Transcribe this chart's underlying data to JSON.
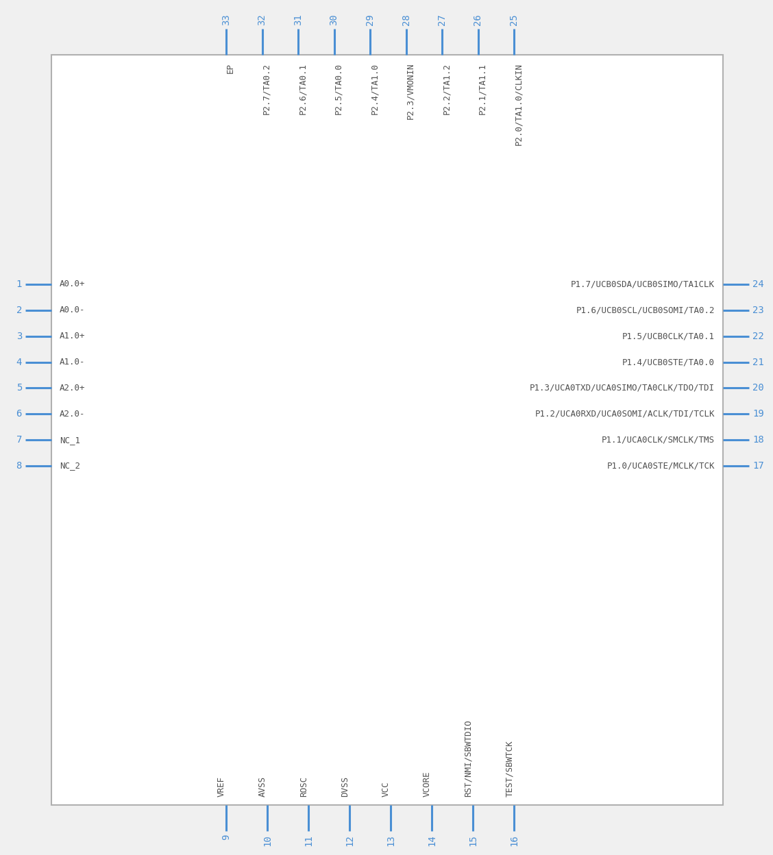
{
  "bg_color": "#f0f0f0",
  "box_color": "#b0b0b0",
  "box_face": "#ffffff",
  "pin_color": "#4a8fd4",
  "text_color": "#505050",
  "pin_num_color": "#4a8fd4",
  "left_pins": [
    {
      "num": 1,
      "name": "A0.0+"
    },
    {
      "num": 2,
      "name": "A0.0-"
    },
    {
      "num": 3,
      "name": "A1.0+"
    },
    {
      "num": 4,
      "name": "A1.0-"
    },
    {
      "num": 5,
      "name": "A2.0+"
    },
    {
      "num": 6,
      "name": "A2.0-"
    },
    {
      "num": 7,
      "name": "NC_1"
    },
    {
      "num": 8,
      "name": "NC_2"
    }
  ],
  "right_pins": [
    {
      "num": 24,
      "name": "P1.7/UCB0SDA/UCB0SIMO/TA1CLK"
    },
    {
      "num": 23,
      "name": "P1.6/UCB0SCL/UCB0SOMI/TA0.2"
    },
    {
      "num": 22,
      "name": "P1.5/UCB0CLK/TA0.1"
    },
    {
      "num": 21,
      "name": "P1.4/UCB0STE/TA0.0"
    },
    {
      "num": 20,
      "name": "P1.3/UCA0TXD/UCA0SIMO/TA0CLK/TDO/TDI"
    },
    {
      "num": 19,
      "name": "P1.2/UCA0RXD/UCA0SOMI/ACLK/TDI/TCLK"
    },
    {
      "num": 18,
      "name": "P1.1/UCA0CLK/SMCLK/TMS"
    },
    {
      "num": 17,
      "name": "P1.0/UCA0STE/MCLK/TCK"
    }
  ],
  "top_pins": [
    {
      "num": 33,
      "name": "EP"
    },
    {
      "num": 32,
      "name": "P2.7/TA0.2"
    },
    {
      "num": 31,
      "name": "P2.6/TA0.1"
    },
    {
      "num": 30,
      "name": "P2.5/TA0.0"
    },
    {
      "num": 29,
      "name": "P2.4/TA1.0"
    },
    {
      "num": 28,
      "name": "P2.3/VMONIN"
    },
    {
      "num": 27,
      "name": "P2.2/TA1.2"
    },
    {
      "num": 26,
      "name": "P2.1/TA1.1"
    },
    {
      "num": 25,
      "name": "P2.0/TA1.0/CLKIN"
    }
  ],
  "bottom_pins": [
    {
      "num": 9,
      "name": "VREF"
    },
    {
      "num": 10,
      "name": "AVSS"
    },
    {
      "num": 11,
      "name": "ROSC"
    },
    {
      "num": 12,
      "name": "DVSS"
    },
    {
      "num": 13,
      "name": "VCC"
    },
    {
      "num": 14,
      "name": "VCORE"
    },
    {
      "num": 15,
      "name": "RST/NMI/SBWTDIO"
    },
    {
      "num": 16,
      "name": "TEST/SBWTCK"
    }
  ]
}
